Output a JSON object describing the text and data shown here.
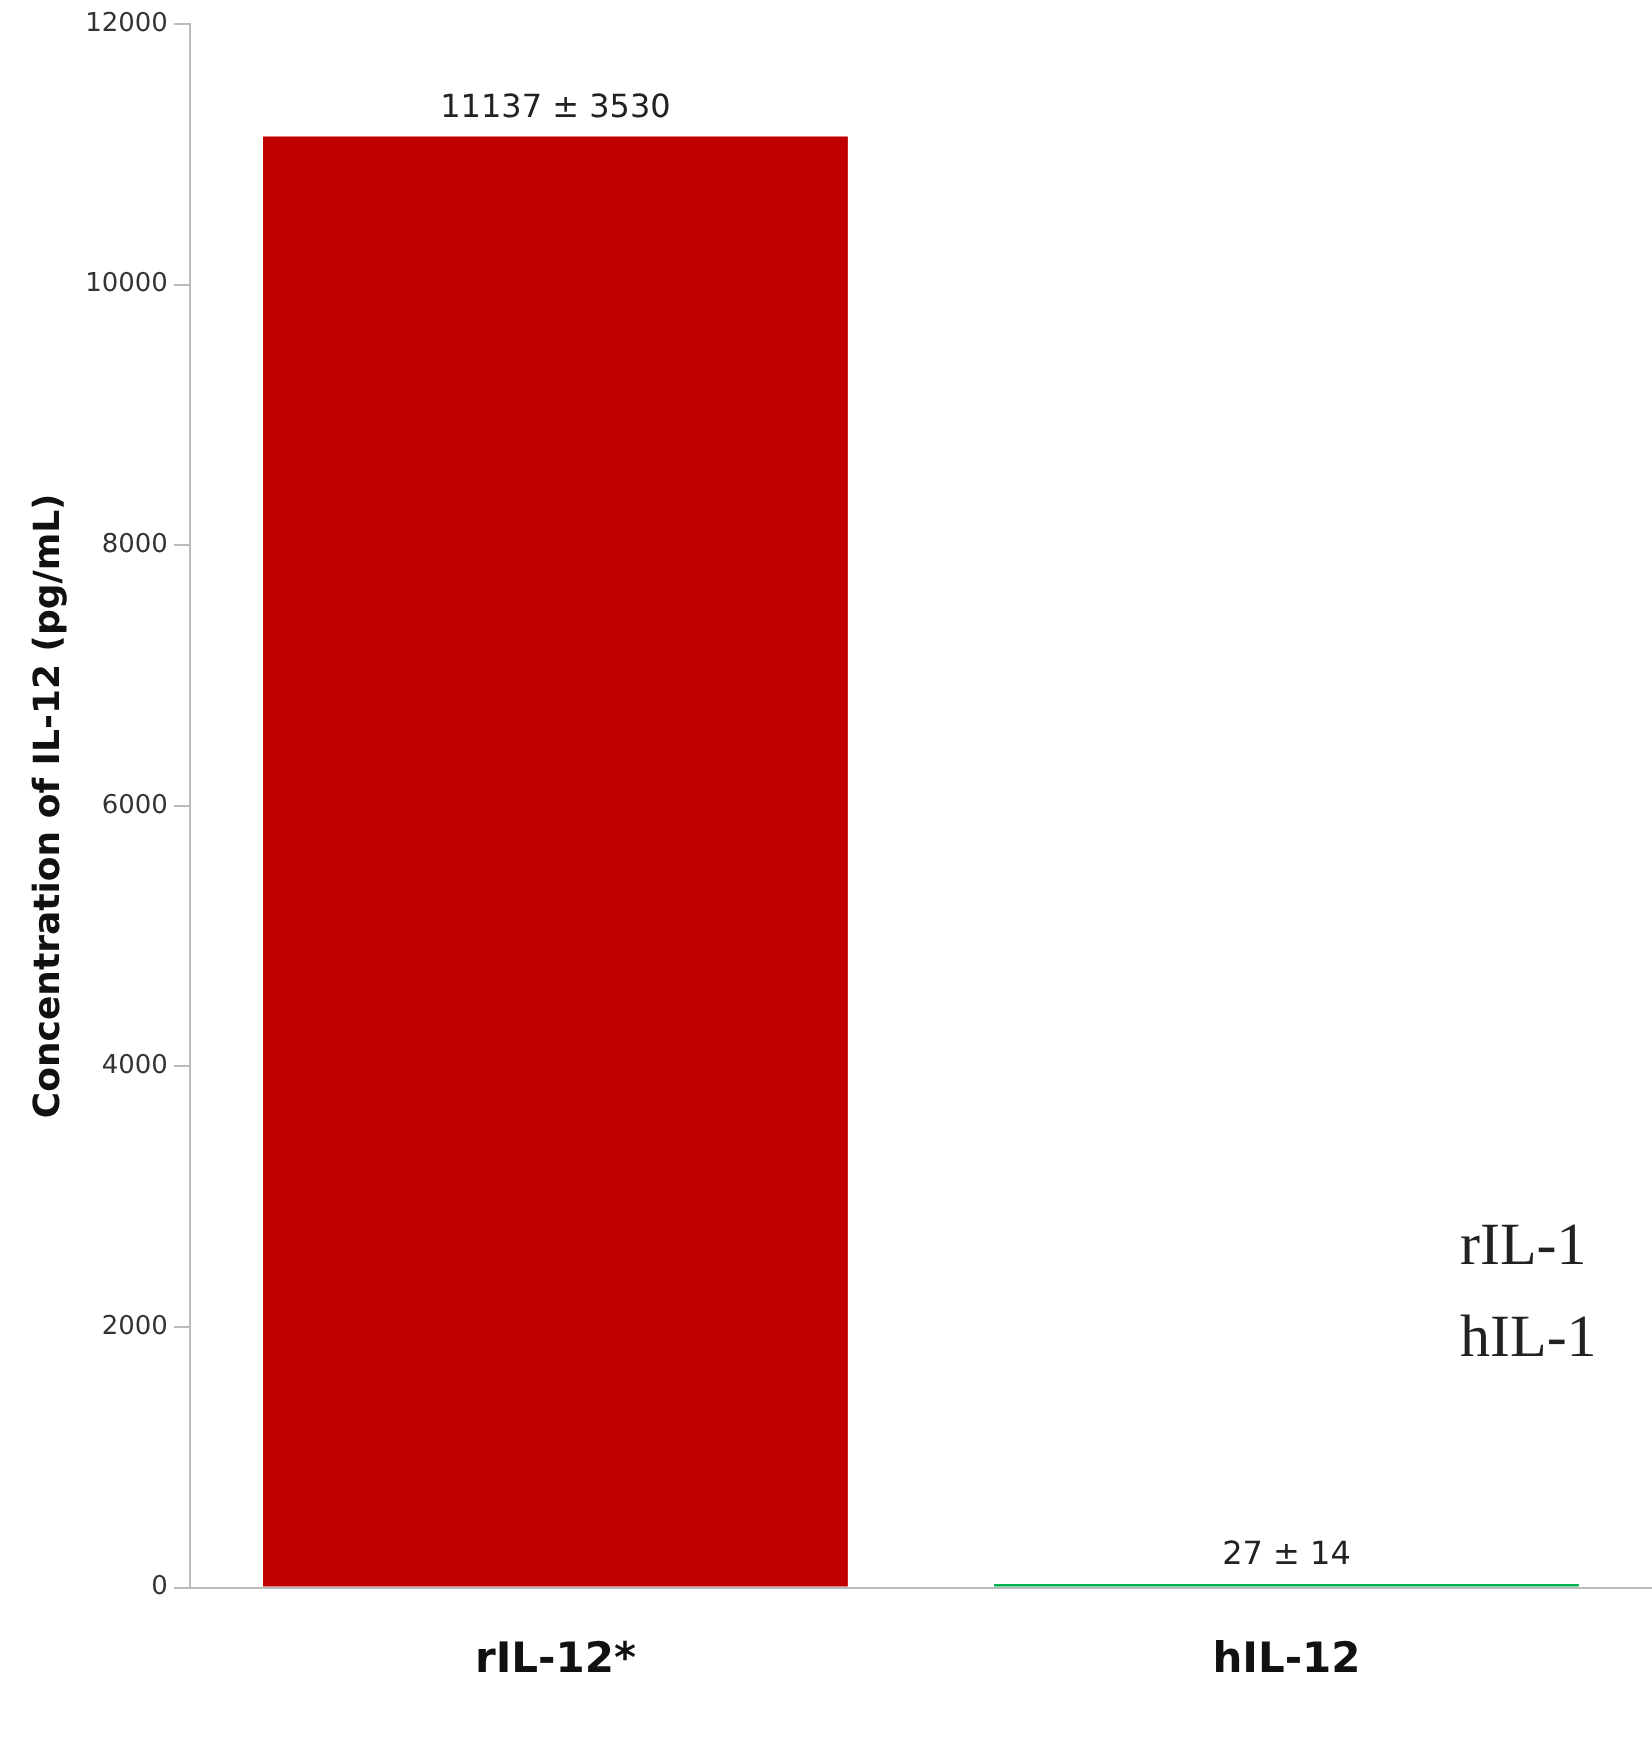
{
  "chart_data": {
    "type": "bar",
    "ylabel": "Concentration of IL-12 (pg/mL)",
    "categories": [
      "rIL-12*",
      "hIL-12"
    ],
    "values": [
      11137,
      27
    ],
    "colors": [
      "#c00000",
      "#00b050"
    ],
    "value_labels": [
      "11137 ± 3530",
      "27 ± 14"
    ],
    "ylim": [
      0,
      12000
    ],
    "yticks": [
      0,
      2000,
      4000,
      6000,
      8000,
      10000,
      12000
    ],
    "grid": false,
    "legend": false,
    "annotations": [
      "rIL-1",
      "hIL-1"
    ]
  }
}
